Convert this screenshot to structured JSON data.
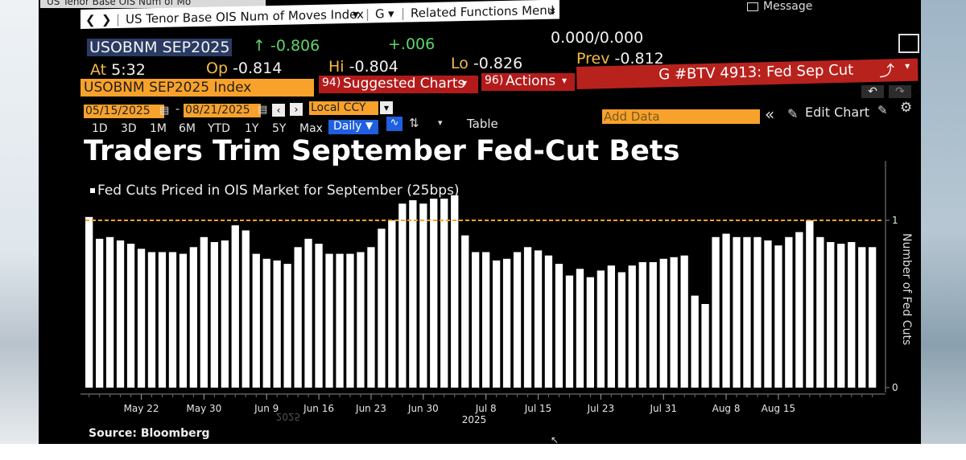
{
  "window": {
    "tab_label": "US Tenor Base OIS Num of Mo",
    "title_path": "US Tenor Base OIS Num of Moves Index",
    "g_menu": "G",
    "related_menu": "Related Functions Menu",
    "message_label": "Message"
  },
  "quote": {
    "ticker": "USOBNM SEP2025",
    "change": "-0.806",
    "change_pct": "+.006",
    "bid_ask": "0.000/0.000",
    "time_label": "At",
    "time": "5:32",
    "open_label": "Op",
    "open": "-0.814",
    "high_label": "Hi",
    "high": "-0.804",
    "low_label": "Lo",
    "low": "-0.826",
    "prev_label": "Prev",
    "prev": "-0.812"
  },
  "toolbar": {
    "security": "USOBNM SEP2025 Index",
    "suggested_code": "94)",
    "suggested_label": "Suggested Charts",
    "actions_code": "96)",
    "actions_label": "Actions",
    "btv_label": "G #BTV 4913: Fed Sep Cut"
  },
  "controls": {
    "start_date": "05/15/2025",
    "end_date": "08/21/2025",
    "currency": "Local CCY",
    "ranges": [
      "1D",
      "3D",
      "1M",
      "6M",
      "YTD",
      "1Y",
      "5Y",
      "Max"
    ],
    "frequency": "Daily",
    "table_label": "Table",
    "add_data_placeholder": "Add Data",
    "edit_chart_label": "Edit Chart"
  },
  "chart_data": {
    "type": "bar",
    "title": "Traders Trim September Fed-Cut Bets",
    "legend": "Fed Cuts Priced in OIS Market for September (25bps)",
    "ylabel": "Number of Fed Cuts",
    "year_label": "2025",
    "ylim": [
      0,
      1.19
    ],
    "yticks": [
      0,
      1
    ],
    "reference_line": 1,
    "grid": false,
    "x_tick_labels": [
      {
        "label": "May 22",
        "index": 5
      },
      {
        "label": "May 30",
        "index": 11
      },
      {
        "label": "Jun 9",
        "index": 17
      },
      {
        "label": "Jun 16",
        "index": 22
      },
      {
        "label": "Jun 23",
        "index": 27
      },
      {
        "label": "Jun 30",
        "index": 32
      },
      {
        "label": "Jul 8",
        "index": 38
      },
      {
        "label": "Jul 15",
        "index": 43
      },
      {
        "label": "Jul 23",
        "index": 49
      },
      {
        "label": "Jul 31",
        "index": 55
      },
      {
        "label": "Aug 8",
        "index": 61
      },
      {
        "label": "Aug 15",
        "index": 66
      }
    ],
    "values": [
      1.02,
      0.89,
      0.9,
      0.88,
      0.86,
      0.83,
      0.81,
      0.81,
      0.81,
      0.8,
      0.84,
      0.9,
      0.87,
      0.88,
      0.97,
      0.94,
      0.8,
      0.77,
      0.76,
      0.74,
      0.84,
      0.89,
      0.86,
      0.8,
      0.8,
      0.8,
      0.81,
      0.84,
      0.95,
      1.0,
      1.1,
      1.12,
      1.1,
      1.13,
      1.13,
      1.15,
      0.91,
      0.81,
      0.81,
      0.76,
      0.77,
      0.81,
      0.84,
      0.82,
      0.79,
      0.74,
      0.67,
      0.71,
      0.66,
      0.7,
      0.73,
      0.69,
      0.73,
      0.75,
      0.75,
      0.77,
      0.78,
      0.79,
      0.55,
      0.5,
      0.9,
      0.92,
      0.9,
      0.9,
      0.9,
      0.88,
      0.85,
      0.9,
      0.93,
      1.0,
      0.9,
      0.87,
      0.86,
      0.87,
      0.84,
      0.84
    ],
    "bar_color": "#ffffff",
    "reference_color": "#f5a623"
  },
  "footer": {
    "source": "Source: Bloomberg",
    "faint_year": "2025"
  }
}
